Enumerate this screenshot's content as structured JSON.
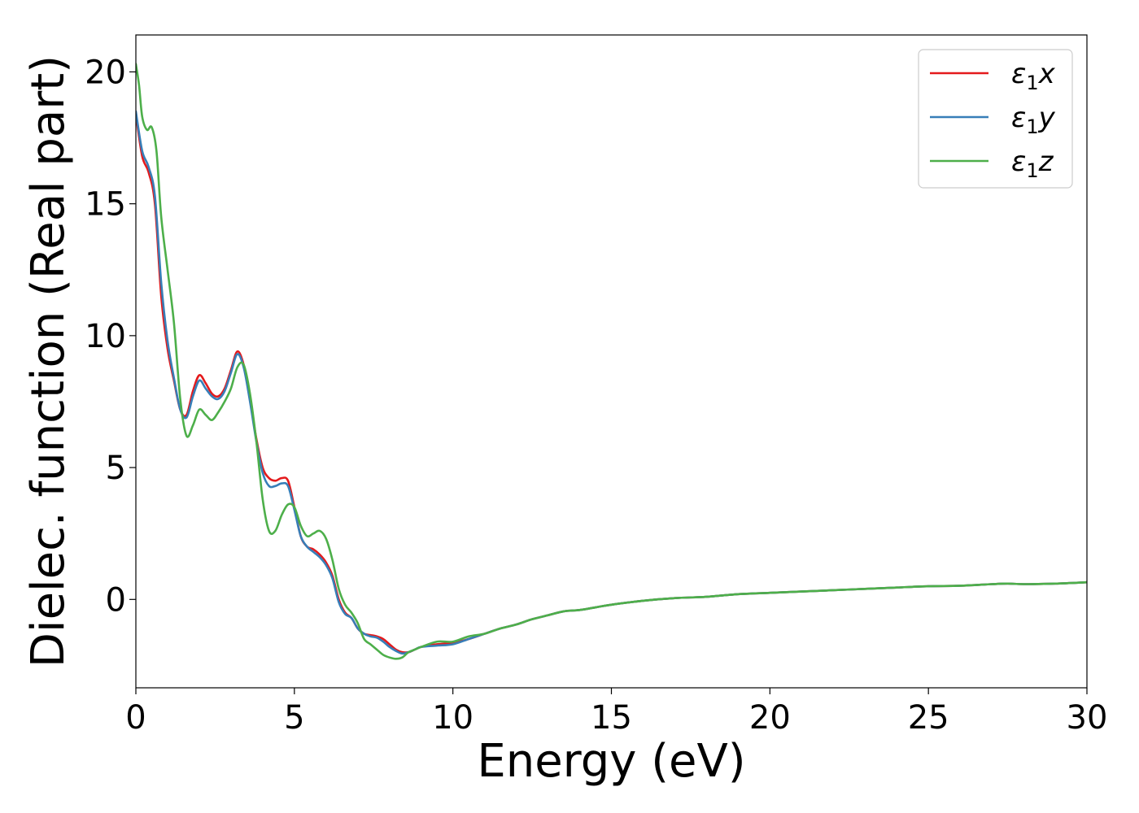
{
  "chart_data": {
    "type": "line",
    "xlabel": "Energy (eV)",
    "ylabel": "Dielec. function (Real part)",
    "xlim": [
      0,
      30
    ],
    "ylim": [
      -3.35,
      21.4
    ],
    "xticks": [
      0,
      5,
      10,
      15,
      20,
      25,
      30
    ],
    "yticks": [
      0,
      5,
      10,
      15,
      20
    ],
    "grid": false,
    "legend_position": "top-right",
    "series": [
      {
        "name": "ε1x",
        "legend_symbol": "ε",
        "legend_sub": "1",
        "legend_var": "x",
        "color": "#e41a1c",
        "x": [
          0,
          0.2,
          0.4,
          0.6,
          0.8,
          1.0,
          1.2,
          1.4,
          1.6,
          1.8,
          2.0,
          2.2,
          2.4,
          2.6,
          2.8,
          3.0,
          3.2,
          3.4,
          3.6,
          3.8,
          4.0,
          4.2,
          4.4,
          4.6,
          4.8,
          5.0,
          5.2,
          5.4,
          5.6,
          5.8,
          6.0,
          6.2,
          6.4,
          6.6,
          6.8,
          7.0,
          7.2,
          7.4,
          7.6,
          7.8,
          8.0,
          8.2,
          8.4,
          8.6,
          8.8,
          9.0,
          9.5,
          10.0,
          10.5,
          11.0,
          11.5,
          12.0,
          12.5,
          13.0,
          13.5,
          14.0,
          14.5,
          15.0,
          16.0,
          17.0,
          18.0,
          19.0,
          20.0,
          21.0,
          22.0,
          23.0,
          24.0,
          25.0,
          26.0,
          27.0,
          27.5,
          28.0,
          29.0,
          30.0
        ],
        "y": [
          18.4,
          16.8,
          16.2,
          15.0,
          11.5,
          9.5,
          8.3,
          7.2,
          7.0,
          7.9,
          8.5,
          8.2,
          7.8,
          7.7,
          8.0,
          8.7,
          9.4,
          8.9,
          7.6,
          6.1,
          5.0,
          4.6,
          4.5,
          4.6,
          4.5,
          3.5,
          2.4,
          2.0,
          1.9,
          1.7,
          1.4,
          0.9,
          0.0,
          -0.5,
          -0.7,
          -1.1,
          -1.3,
          -1.35,
          -1.4,
          -1.5,
          -1.7,
          -1.9,
          -2.0,
          -2.0,
          -1.9,
          -1.8,
          -1.7,
          -1.65,
          -1.5,
          -1.3,
          -1.1,
          -0.95,
          -0.75,
          -0.6,
          -0.45,
          -0.4,
          -0.3,
          -0.2,
          -0.05,
          0.05,
          0.1,
          0.2,
          0.25,
          0.3,
          0.35,
          0.4,
          0.45,
          0.5,
          0.52,
          0.58,
          0.6,
          0.58,
          0.6,
          0.65
        ]
      },
      {
        "name": "ε1y",
        "legend_symbol": "ε",
        "legend_sub": "1",
        "legend_var": "y",
        "color": "#377eb8",
        "x": [
          0,
          0.2,
          0.4,
          0.6,
          0.8,
          1.0,
          1.2,
          1.4,
          1.6,
          1.8,
          2.0,
          2.2,
          2.4,
          2.6,
          2.8,
          3.0,
          3.2,
          3.4,
          3.6,
          3.8,
          4.0,
          4.2,
          4.4,
          4.6,
          4.8,
          5.0,
          5.2,
          5.4,
          5.6,
          5.8,
          6.0,
          6.2,
          6.4,
          6.6,
          6.8,
          7.0,
          7.2,
          7.4,
          7.6,
          7.8,
          8.0,
          8.2,
          8.4,
          8.6,
          8.8,
          9.0,
          9.5,
          10.0,
          10.5,
          11.0,
          11.5,
          12.0,
          12.5,
          13.0,
          13.5,
          14.0,
          14.5,
          15.0,
          16.0,
          17.0,
          18.0,
          19.0,
          20.0,
          21.0,
          22.0,
          23.0,
          24.0,
          25.0,
          26.0,
          27.0,
          27.5,
          28.0,
          29.0,
          30.0
        ],
        "y": [
          18.5,
          17.0,
          16.4,
          15.3,
          12.0,
          9.8,
          8.4,
          7.2,
          6.9,
          7.7,
          8.3,
          8.0,
          7.7,
          7.6,
          7.9,
          8.6,
          9.3,
          8.8,
          7.5,
          6.0,
          4.8,
          4.3,
          4.3,
          4.4,
          4.3,
          3.4,
          2.4,
          2.0,
          1.8,
          1.6,
          1.3,
          0.8,
          -0.1,
          -0.55,
          -0.7,
          -1.1,
          -1.3,
          -1.4,
          -1.45,
          -1.6,
          -1.8,
          -1.95,
          -2.05,
          -2.0,
          -1.9,
          -1.8,
          -1.75,
          -1.7,
          -1.5,
          -1.3,
          -1.1,
          -0.95,
          -0.75,
          -0.6,
          -0.45,
          -0.4,
          -0.3,
          -0.2,
          -0.05,
          0.05,
          0.1,
          0.2,
          0.25,
          0.3,
          0.35,
          0.4,
          0.45,
          0.5,
          0.52,
          0.58,
          0.6,
          0.58,
          0.6,
          0.65
        ]
      },
      {
        "name": "ε1z",
        "legend_symbol": "ε",
        "legend_sub": "1",
        "legend_var": "z",
        "color": "#4daf4a",
        "x": [
          0,
          0.1,
          0.2,
          0.35,
          0.5,
          0.65,
          0.8,
          1.0,
          1.2,
          1.4,
          1.6,
          1.8,
          2.0,
          2.2,
          2.4,
          2.6,
          2.8,
          3.0,
          3.2,
          3.4,
          3.6,
          3.8,
          4.0,
          4.2,
          4.4,
          4.6,
          4.8,
          5.0,
          5.2,
          5.4,
          5.6,
          5.8,
          6.0,
          6.2,
          6.4,
          6.6,
          6.8,
          7.0,
          7.2,
          7.4,
          7.6,
          7.8,
          8.0,
          8.2,
          8.4,
          8.6,
          8.8,
          9.0,
          9.5,
          10.0,
          10.5,
          11.0,
          11.5,
          12.0,
          12.5,
          13.0,
          13.5,
          14.0,
          14.5,
          15.0,
          16.0,
          17.0,
          18.0,
          19.0,
          20.0,
          21.0,
          22.0,
          23.0,
          24.0,
          25.0,
          26.0,
          27.0,
          27.5,
          28.0,
          29.0,
          30.0
        ],
        "y": [
          20.3,
          19.5,
          18.3,
          17.8,
          17.9,
          17.0,
          14.5,
          12.5,
          10.5,
          7.6,
          6.2,
          6.6,
          7.2,
          7.0,
          6.8,
          7.1,
          7.5,
          8.0,
          8.8,
          8.9,
          7.8,
          6.0,
          3.8,
          2.6,
          2.6,
          3.2,
          3.6,
          3.5,
          2.8,
          2.4,
          2.5,
          2.6,
          2.3,
          1.5,
          0.4,
          -0.2,
          -0.5,
          -0.9,
          -1.5,
          -1.7,
          -1.9,
          -2.1,
          -2.2,
          -2.25,
          -2.2,
          -2.0,
          -1.9,
          -1.8,
          -1.6,
          -1.6,
          -1.4,
          -1.3,
          -1.1,
          -0.95,
          -0.75,
          -0.6,
          -0.45,
          -0.4,
          -0.3,
          -0.2,
          -0.05,
          0.05,
          0.1,
          0.2,
          0.25,
          0.3,
          0.35,
          0.4,
          0.45,
          0.5,
          0.52,
          0.58,
          0.6,
          0.58,
          0.6,
          0.65
        ]
      }
    ]
  }
}
